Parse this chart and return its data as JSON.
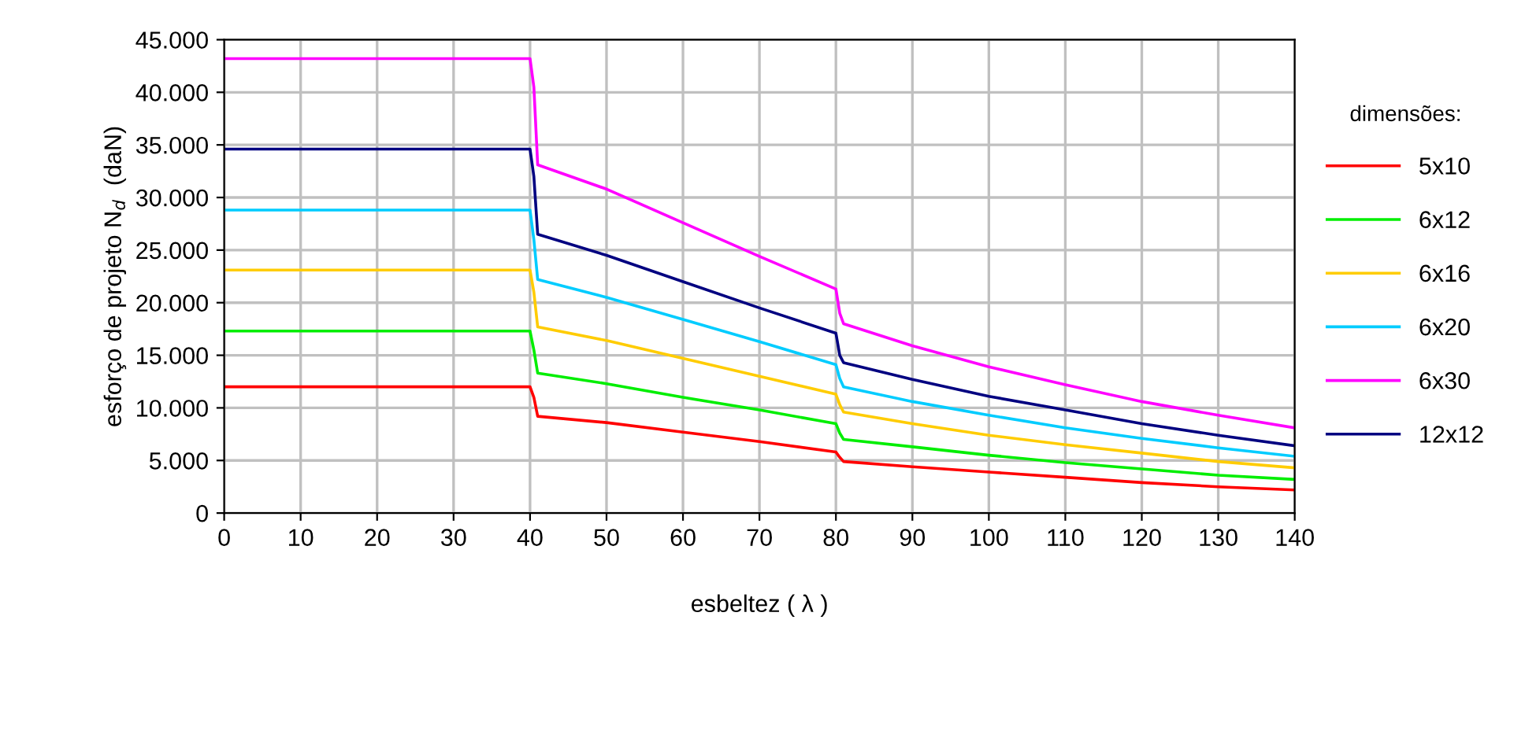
{
  "chart_data": {
    "type": "line",
    "xlabel": "esbeltez ( λ )",
    "ylabel": "esforço de projeto N$_{d}$  (daN)",
    "legend_title": "dimensões:",
    "x": [
      0,
      40,
      40.5,
      41,
      50,
      60,
      70,
      80,
      80.5,
      81,
      90,
      100,
      110,
      120,
      130,
      140
    ],
    "series": [
      {
        "name": "5x10",
        "color": "#ff0000",
        "values": [
          12000,
          12000,
          11000,
          9200,
          8600,
          7700,
          6800,
          5800,
          5300,
          4900,
          4400,
          3900,
          3400,
          2900,
          2500,
          2200
        ]
      },
      {
        "name": "6x12",
        "color": "#00ee00",
        "values": [
          17300,
          17300,
          15500,
          13300,
          12300,
          11000,
          9800,
          8500,
          7600,
          7000,
          6300,
          5500,
          4800,
          4200,
          3600,
          3200
        ]
      },
      {
        "name": "6x16",
        "color": "#ffcc00",
        "values": [
          23100,
          23100,
          21000,
          17700,
          16400,
          14700,
          13000,
          11300,
          10300,
          9600,
          8500,
          7400,
          6500,
          5700,
          4900,
          4300
        ]
      },
      {
        "name": "6x20",
        "color": "#00ccff",
        "values": [
          28800,
          28800,
          26000,
          22200,
          20500,
          18400,
          16300,
          14100,
          12800,
          12000,
          10600,
          9300,
          8100,
          7100,
          6200,
          5400
        ]
      },
      {
        "name": "6x30",
        "color": "#ff00ff",
        "values": [
          43200,
          43200,
          40500,
          33100,
          30800,
          27600,
          24400,
          21300,
          19000,
          18000,
          15900,
          13900,
          12200,
          10600,
          9300,
          8100
        ]
      },
      {
        "name": "12x12",
        "color": "#000080",
        "values": [
          34600,
          34600,
          32000,
          26500,
          24500,
          22000,
          19500,
          17100,
          15000,
          14300,
          12700,
          11100,
          9800,
          8500,
          7400,
          6400
        ]
      }
    ],
    "xlim": [
      0,
      140
    ],
    "xticks": [
      0,
      10,
      20,
      30,
      40,
      50,
      60,
      70,
      80,
      90,
      100,
      110,
      120,
      130,
      140
    ],
    "ylim": [
      0,
      45000
    ],
    "yticks": [
      {
        "value": 0,
        "label": "0"
      },
      {
        "value": 5000,
        "label": "5.000"
      },
      {
        "value": 10000,
        "label": "10.000"
      },
      {
        "value": 15000,
        "label": "15.000"
      },
      {
        "value": 20000,
        "label": "20.000"
      },
      {
        "value": 25000,
        "label": "25.000"
      },
      {
        "value": 30000,
        "label": "30.000"
      },
      {
        "value": 35000,
        "label": "35.000"
      },
      {
        "value": 40000,
        "label": "40.000"
      },
      {
        "value": 45000,
        "label": "45.000"
      }
    ],
    "grid": true,
    "legend": "right",
    "marker": "none",
    "line_style": "solid"
  }
}
